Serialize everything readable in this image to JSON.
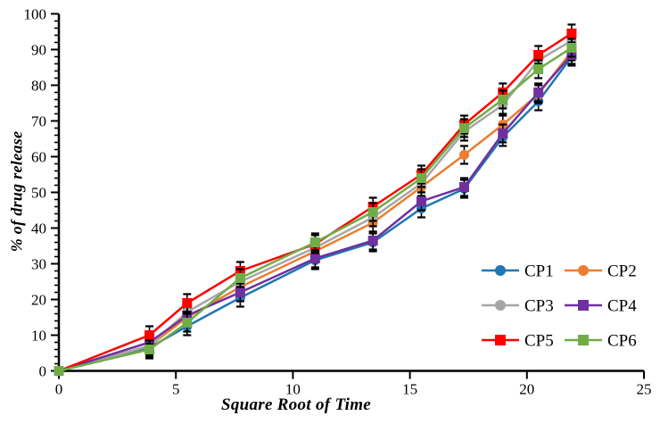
{
  "chart_data": {
    "type": "line",
    "title": "",
    "xlabel": "Square Root of Time",
    "ylabel": "% of drug release",
    "xlim": [
      0,
      25
    ],
    "ylim": [
      0,
      100
    ],
    "grid": false,
    "x_tick_values": [
      0,
      5,
      10,
      15,
      20,
      25
    ],
    "x_tick_labels": [
      "0",
      "5",
      "10",
      "15",
      "20",
      "25"
    ],
    "y_tick_values": [
      0,
      10,
      20,
      30,
      40,
      50,
      60,
      70,
      80,
      90,
      100
    ],
    "y_tick_labels": [
      "0",
      "10",
      "20",
      "30",
      "40",
      "50",
      "60",
      "70",
      "80",
      "90",
      "100"
    ],
    "y_minor_step": 2,
    "legend_position": "inside-bottom-right",
    "error_bar": 2.5,
    "error_bar_color": "#000000",
    "axis_color": "#000000",
    "x": [
      0,
      3.87,
      5.48,
      7.75,
      10.95,
      13.42,
      15.49,
      17.32,
      18.97,
      20.49,
      21.91
    ],
    "series": [
      {
        "name": "CP1",
        "color": "#1F77B4",
        "marker": "circle",
        "values": [
          0,
          6.5,
          12.5,
          20.5,
          31,
          36,
          45.5,
          51,
          65.5,
          75.5,
          88
        ]
      },
      {
        "name": "CP2",
        "color": "#ED7D31",
        "marker": "circle",
        "values": [
          0,
          7,
          15,
          23.5,
          33.5,
          41.5,
          51.5,
          60.5,
          69,
          77.5,
          89.5
        ]
      },
      {
        "name": "CP3",
        "color": "#A6A6A6",
        "marker": "circle",
        "values": [
          0,
          7,
          16.5,
          25,
          34.5,
          43,
          52.5,
          67,
          74.5,
          87,
          92.5
        ]
      },
      {
        "name": "CP4",
        "color": "#7030A0",
        "marker": "square",
        "values": [
          0,
          8,
          15.5,
          22,
          31.5,
          36.5,
          47.5,
          51.5,
          66.5,
          78,
          88.5
        ]
      },
      {
        "name": "CP5",
        "color": "#FF0000",
        "marker": "square",
        "values": [
          0,
          10,
          19,
          28,
          35.5,
          46,
          55,
          69,
          78,
          88.5,
          94.5
        ]
      },
      {
        "name": "CP6",
        "color": "#70AD47",
        "marker": "square",
        "values": [
          0,
          6,
          13.5,
          26,
          36,
          44.5,
          54,
          68,
          76,
          84.5,
          90.5
        ]
      }
    ]
  }
}
